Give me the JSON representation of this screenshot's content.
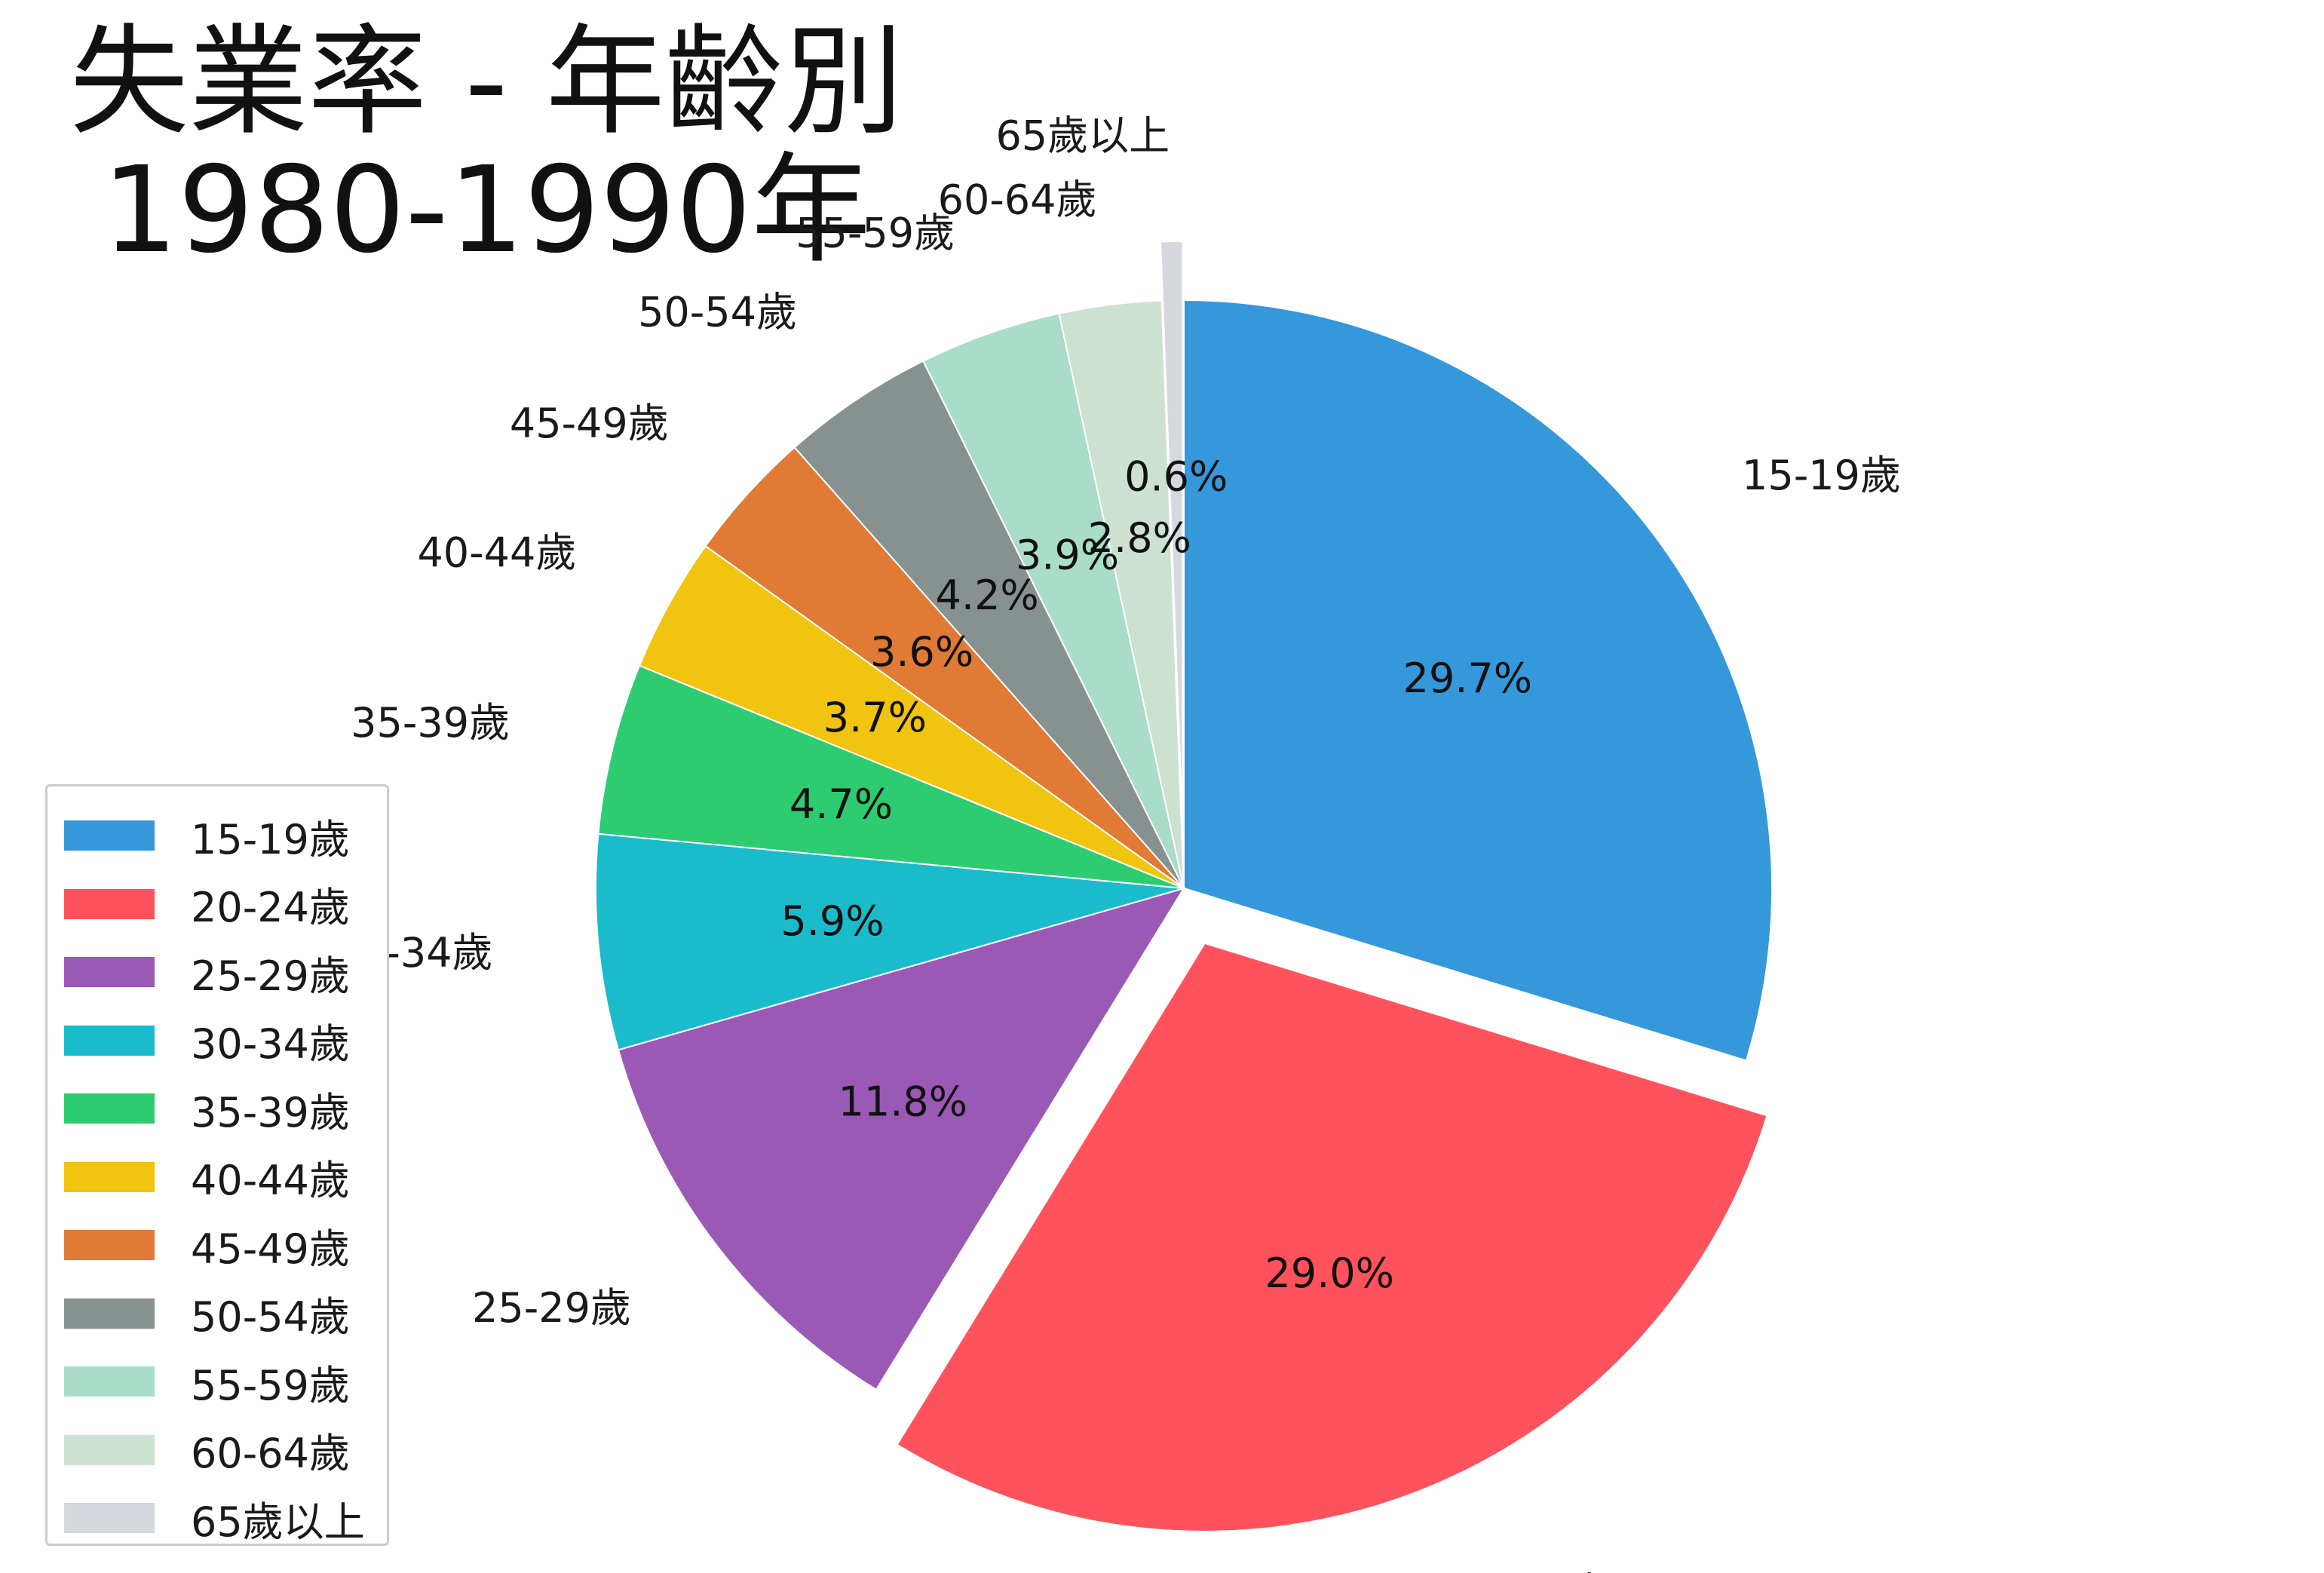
{
  "title": {
    "line1": "失業率 - 年齡別",
    "line2": "1980-1990年"
  },
  "chart_data": {
    "type": "pie",
    "title": "失業率 - 年齡別 1980-1990年",
    "start_angle_deg": 90,
    "direction": "clockwise",
    "exploded": [
      "20-24歲",
      "65歲以上"
    ],
    "legend_position": "lower-left",
    "slices": [
      {
        "label": "15-19歲",
        "value": 29.7,
        "pct_label": "29.7%",
        "color": "#3498db"
      },
      {
        "label": "20-24歲",
        "value": 29.0,
        "pct_label": "29.0%",
        "color": "#ff525c"
      },
      {
        "label": "25-29歲",
        "value": 11.8,
        "pct_label": "11.8%",
        "color": "#9b59b6"
      },
      {
        "label": "30-34歲",
        "value": 5.9,
        "pct_label": "5.9%",
        "color": "#1abccb"
      },
      {
        "label": "35-39歲",
        "value": 4.7,
        "pct_label": "4.7%",
        "color": "#2ecc71"
      },
      {
        "label": "40-44歲",
        "value": 3.7,
        "pct_label": "3.7%",
        "color": "#f1c40f"
      },
      {
        "label": "45-49歲",
        "value": 3.6,
        "pct_label": "3.6%",
        "color": "#e07a35"
      },
      {
        "label": "50-54歲",
        "value": 4.2,
        "pct_label": "4.2%",
        "color": "#879190"
      },
      {
        "label": "55-59歲",
        "value": 3.9,
        "pct_label": "3.9%",
        "color": "#aadcca"
      },
      {
        "label": "60-64歲",
        "value": 2.8,
        "pct_label": "2.8%",
        "color": "#cde1d2"
      },
      {
        "label": "65歲以上",
        "value": 0.6,
        "pct_label": "0.6%",
        "color": "#d5d8dc"
      }
    ]
  }
}
